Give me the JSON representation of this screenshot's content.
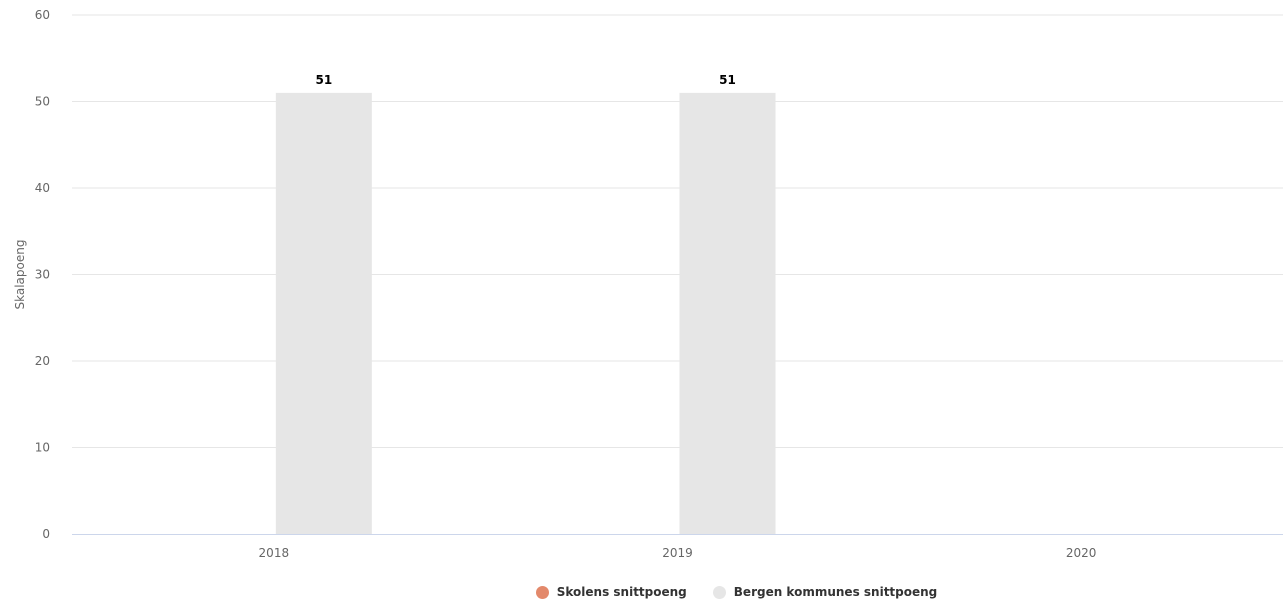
{
  "chart_data": {
    "type": "bar",
    "categories": [
      "2018",
      "2019",
      "2020"
    ],
    "series": [
      {
        "name": "Skolens snittpoeng",
        "color": "#e3896b",
        "values": [
          null,
          null,
          null
        ]
      },
      {
        "name": "Bergen kommunes snittpoeng",
        "color": "#e6e6e6",
        "values": [
          51,
          51,
          null
        ]
      }
    ],
    "data_labels": [
      "51",
      "51",
      ""
    ],
    "ylabel": "Skalapoeng",
    "ylim": [
      0,
      60
    ],
    "yticks": [
      "0",
      "10",
      "20",
      "30",
      "40",
      "50",
      "60"
    ],
    "grid": true,
    "legend_position": "bottom"
  }
}
